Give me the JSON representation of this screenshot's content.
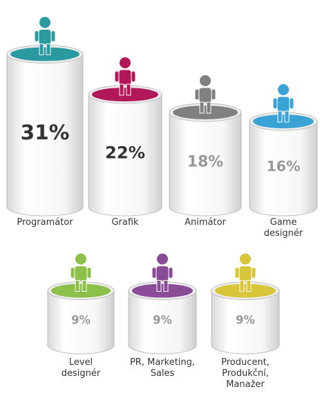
{
  "chart_data": {
    "type": "cylinder",
    "categories": [
      "Programátor",
      "Grafik",
      "Animátor",
      "Game\ndesignér",
      "Level\ndesignér",
      "PR, Marketing,\nSales",
      "Producent,\nProdukční,\nManažer"
    ],
    "values": [
      31,
      22,
      18,
      16,
      9,
      9,
      9
    ],
    "value_labels": [
      "31%",
      "22%",
      "18%",
      "16%",
      "9%",
      "9%",
      "9%"
    ],
    "colors": [
      "#2a9aa0",
      "#b0185a",
      "#7f8081",
      "#3aa3d6",
      "#8cc04a",
      "#8a4b97",
      "#d9c53a"
    ]
  }
}
